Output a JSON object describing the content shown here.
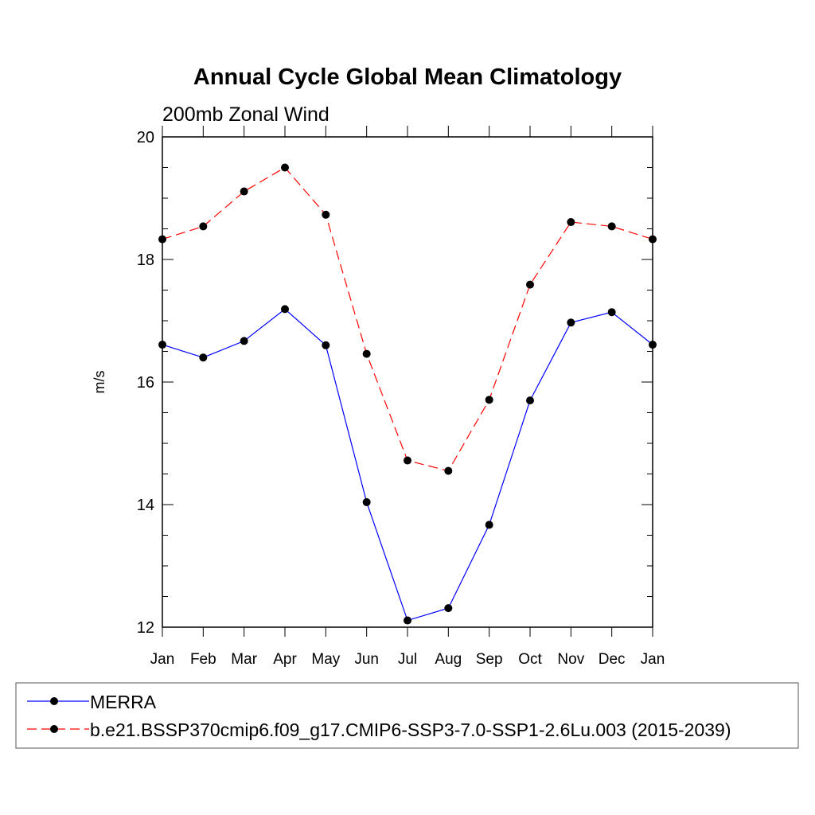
{
  "chart_data": {
    "type": "line",
    "title": "Annual Cycle Global Mean Climatology",
    "subtitle": "200mb Zonal Wind",
    "xlabel": "",
    "ylabel": "m/s",
    "categories": [
      "Jan",
      "Feb",
      "Mar",
      "Apr",
      "May",
      "Jun",
      "Jul",
      "Aug",
      "Sep",
      "Oct",
      "Nov",
      "Dec",
      "Jan"
    ],
    "ylim": [
      12,
      20
    ],
    "yticks": [
      12,
      14,
      16,
      18,
      20
    ],
    "grid": false,
    "legend_position": "bottom",
    "series": [
      {
        "name": "MERRA",
        "color": "#0000ff",
        "dash": "solid",
        "values": [
          16.61,
          16.4,
          16.67,
          17.19,
          16.6,
          14.04,
          12.11,
          12.31,
          13.67,
          15.7,
          16.97,
          17.14,
          16.61
        ]
      },
      {
        "name": "b.e21.BSSP370cmip6.f09_g17.CMIP6-SSP3-7.0-SSP1-2.6Lu.003 (2015-2039)",
        "color": "#ff0000",
        "dash": "dashed",
        "values": [
          18.33,
          18.54,
          19.11,
          19.5,
          18.73,
          16.46,
          14.72,
          14.55,
          15.71,
          17.59,
          18.61,
          18.54,
          18.33
        ]
      }
    ]
  }
}
